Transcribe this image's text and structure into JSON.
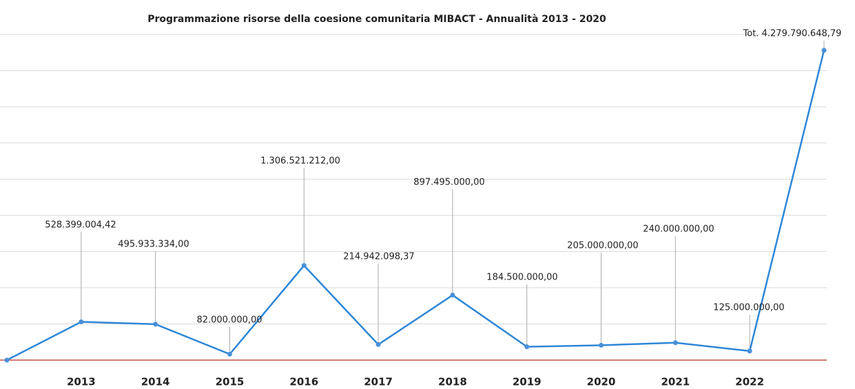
{
  "chart_data": {
    "type": "line",
    "title": "Programmazione risorse della coesione comunitaria MIBACT - Annualità 2013 - 2020",
    "categories": [
      null,
      "2013",
      "2014",
      "2015",
      "2016",
      "2017",
      "2018",
      "2019",
      "2020",
      "2021",
      "2022",
      null
    ],
    "values": [
      0,
      528399004.42,
      495933334,
      82000000,
      1306521212,
      214942098.37,
      897495000,
      184500000,
      205000000,
      240000000,
      125000000,
      4279790648.79
    ],
    "value_labels": [
      null,
      "528.399.004,42",
      "495.933.334,00",
      "82.000.000,00",
      "1.306.521.212,00",
      "214.942.098,37",
      "897.495.000,00",
      "184.500.000,00",
      "205.000.000,00",
      "240.000.000,00",
      "125.000.000,00",
      "Tot. 4.279.790.648,79"
    ],
    "color": "#2e86d6",
    "ylim": [
      0,
      4500000000
    ],
    "yticks": [
      0,
      500000000,
      1000000000,
      1500000000,
      2000000000,
      2500000000,
      3000000000,
      3500000000,
      4000000000,
      4500000000
    ],
    "grid": true
  }
}
